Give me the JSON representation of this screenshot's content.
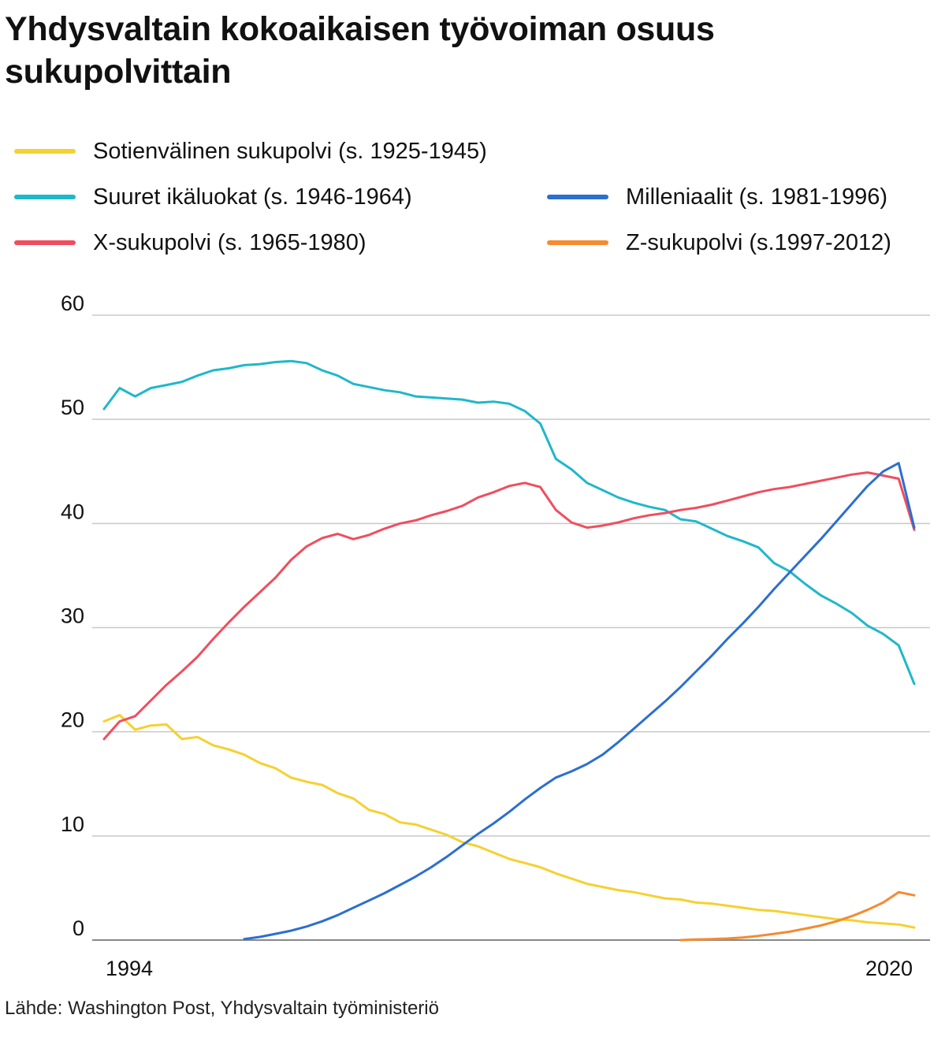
{
  "title": "Yhdysvaltain kokoaikaisen työvoiman osuus sukupolvittain",
  "source": "Lähde: Washington Post, Yhdysvaltain työministeriö",
  "chart_data": {
    "type": "line",
    "title": "Yhdysvaltain kokoaikaisen työvoiman osuus sukupolvittain",
    "xlabel": "",
    "ylabel": "",
    "xlim": [
      1994,
      2020
    ],
    "ylim": [
      0,
      60
    ],
    "yticks": [
      0,
      10,
      20,
      30,
      40,
      50,
      60
    ],
    "xtick_labels": [
      "1994",
      "2020"
    ],
    "grid": true,
    "legend_position": "top",
    "series": [
      {
        "name": "Sotienvälinen sukupolvi (s. 1925-1945)",
        "color": "#f5d130",
        "x": [
          1994.0,
          1994.5,
          1995.0,
          1995.5,
          1996.0,
          1996.5,
          1997.0,
          1997.5,
          1998.0,
          1998.5,
          1999.0,
          1999.5,
          2000.0,
          2000.5,
          2001.0,
          2001.5,
          2002.0,
          2002.5,
          2003.0,
          2003.5,
          2004.0,
          2004.5,
          2005.0,
          2005.5,
          2006.0,
          2006.5,
          2007.0,
          2007.5,
          2008.0,
          2008.5,
          2009.0,
          2009.5,
          2010.0,
          2010.5,
          2011.0,
          2011.5,
          2012.0,
          2012.5,
          2013.0,
          2013.5,
          2014.0,
          2014.5,
          2015.0,
          2015.5,
          2016.0,
          2016.5,
          2017.0,
          2017.5,
          2018.0,
          2018.5,
          2019.0,
          2019.5,
          2020.0
        ],
        "values": [
          21.0,
          21.6,
          20.2,
          20.6,
          20.7,
          19.3,
          19.5,
          18.7,
          18.3,
          17.8,
          17.0,
          16.5,
          15.6,
          15.2,
          14.9,
          14.1,
          13.6,
          12.5,
          12.1,
          11.3,
          11.1,
          10.6,
          10.1,
          9.4,
          9.0,
          8.4,
          7.8,
          7.4,
          7.0,
          6.4,
          5.9,
          5.4,
          5.1,
          4.8,
          4.6,
          4.3,
          4.0,
          3.9,
          3.6,
          3.5,
          3.3,
          3.1,
          2.9,
          2.8,
          2.6,
          2.4,
          2.2,
          2.0,
          1.9,
          1.7,
          1.6,
          1.5,
          1.2
        ]
      },
      {
        "name": "Suuret ikäluokat (s. 1946-1964)",
        "color": "#1fb8c9",
        "x": [
          1994.0,
          1994.5,
          1995.0,
          1995.5,
          1996.0,
          1996.5,
          1997.0,
          1997.5,
          1998.0,
          1998.5,
          1999.0,
          1999.5,
          2000.0,
          2000.5,
          2001.0,
          2001.5,
          2002.0,
          2002.5,
          2003.0,
          2003.5,
          2004.0,
          2004.5,
          2005.0,
          2005.5,
          2006.0,
          2006.5,
          2007.0,
          2007.5,
          2008.0,
          2008.5,
          2009.0,
          2009.5,
          2010.0,
          2010.5,
          2011.0,
          2011.5,
          2012.0,
          2012.5,
          2013.0,
          2013.5,
          2014.0,
          2014.5,
          2015.0,
          2015.5,
          2016.0,
          2016.5,
          2017.0,
          2017.5,
          2018.0,
          2018.5,
          2019.0,
          2019.5,
          2020.0
        ],
        "values": [
          51.0,
          53.0,
          52.2,
          53.0,
          53.3,
          53.6,
          54.2,
          54.7,
          54.9,
          55.2,
          55.3,
          55.5,
          55.6,
          55.4,
          54.7,
          54.2,
          53.4,
          53.1,
          52.8,
          52.6,
          52.2,
          52.1,
          52.0,
          51.9,
          51.6,
          51.7,
          51.5,
          50.8,
          49.6,
          46.2,
          45.2,
          43.9,
          43.2,
          42.5,
          42.0,
          41.6,
          41.3,
          40.4,
          40.2,
          39.5,
          38.8,
          38.3,
          37.7,
          36.2,
          35.4,
          34.2,
          33.1,
          32.3,
          31.4,
          30.2,
          29.4,
          28.3,
          24.6
        ]
      },
      {
        "name": "X-sukupolvi (s. 1965-1980)",
        "color": "#f04e5e",
        "x": [
          1994.0,
          1994.5,
          1995.0,
          1995.5,
          1996.0,
          1996.5,
          1997.0,
          1997.5,
          1998.0,
          1998.5,
          1999.0,
          1999.5,
          2000.0,
          2000.5,
          2001.0,
          2001.5,
          2002.0,
          2002.5,
          2003.0,
          2003.5,
          2004.0,
          2004.5,
          2005.0,
          2005.5,
          2006.0,
          2006.5,
          2007.0,
          2007.5,
          2008.0,
          2008.5,
          2009.0,
          2009.5,
          2010.0,
          2010.5,
          2011.0,
          2011.5,
          2012.0,
          2012.5,
          2013.0,
          2013.5,
          2014.0,
          2014.5,
          2015.0,
          2015.5,
          2016.0,
          2016.5,
          2017.0,
          2017.5,
          2018.0,
          2018.5,
          2019.0,
          2019.5,
          2020.0
        ],
        "values": [
          19.3,
          21.0,
          21.5,
          23.0,
          24.5,
          25.8,
          27.2,
          28.9,
          30.5,
          32.0,
          33.4,
          34.8,
          36.5,
          37.8,
          38.6,
          39.0,
          38.5,
          38.9,
          39.5,
          40.0,
          40.3,
          40.8,
          41.2,
          41.7,
          42.5,
          43.0,
          43.6,
          43.9,
          43.5,
          41.3,
          40.1,
          39.6,
          39.8,
          40.1,
          40.5,
          40.8,
          41.0,
          41.3,
          41.5,
          41.8,
          42.2,
          42.6,
          43.0,
          43.3,
          43.5,
          43.8,
          44.1,
          44.4,
          44.7,
          44.9,
          44.6,
          44.3,
          39.4
        ]
      },
      {
        "name": "Milleniaalit (s. 1981-1996)",
        "color": "#2c6fce",
        "x": [
          1998.5,
          1999.0,
          1999.5,
          2000.0,
          2000.5,
          2001.0,
          2001.5,
          2002.0,
          2002.5,
          2003.0,
          2003.5,
          2004.0,
          2004.5,
          2005.0,
          2005.5,
          2006.0,
          2006.5,
          2007.0,
          2007.5,
          2008.0,
          2008.5,
          2009.0,
          2009.5,
          2010.0,
          2010.5,
          2011.0,
          2011.5,
          2012.0,
          2012.5,
          2013.0,
          2013.5,
          2014.0,
          2014.5,
          2015.0,
          2015.5,
          2016.0,
          2016.5,
          2017.0,
          2017.5,
          2018.0,
          2018.5,
          2019.0,
          2019.5,
          2020.0
        ],
        "values": [
          0.1,
          0.3,
          0.6,
          0.9,
          1.3,
          1.8,
          2.4,
          3.1,
          3.8,
          4.5,
          5.3,
          6.1,
          7.0,
          8.0,
          9.1,
          10.2,
          11.2,
          12.3,
          13.5,
          14.6,
          15.6,
          16.2,
          16.9,
          17.8,
          19.0,
          20.3,
          21.6,
          22.9,
          24.3,
          25.8,
          27.3,
          28.9,
          30.4,
          32.0,
          33.7,
          35.3,
          36.9,
          38.5,
          40.2,
          41.9,
          43.6,
          45.0,
          45.8,
          39.6
        ]
      },
      {
        "name": "Z-sukupolvi (s.1997-2012)",
        "color": "#f58a30",
        "x": [
          2012.5,
          2013.0,
          2013.5,
          2014.0,
          2014.5,
          2015.0,
          2015.5,
          2016.0,
          2016.5,
          2017.0,
          2017.5,
          2018.0,
          2018.5,
          2019.0,
          2019.5,
          2020.0
        ],
        "values": [
          0.0,
          0.05,
          0.1,
          0.15,
          0.25,
          0.4,
          0.6,
          0.8,
          1.1,
          1.4,
          1.8,
          2.3,
          2.9,
          3.6,
          4.6,
          4.3
        ]
      }
    ]
  }
}
